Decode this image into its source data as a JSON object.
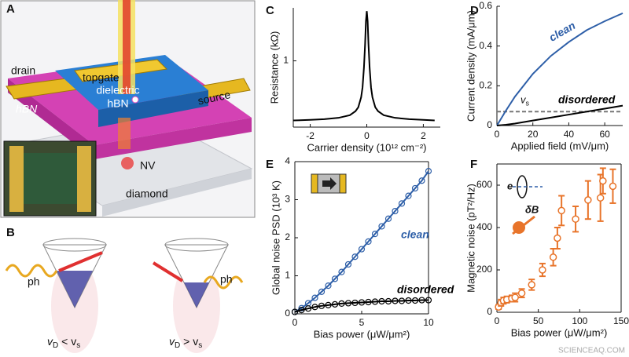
{
  "illustration": {
    "a": {
      "panel": "A",
      "drain": "drain",
      "topgate": "topgate",
      "dielectric": [
        "dielectric",
        "hBN"
      ],
      "source": "source",
      "hbn": "hBN",
      "nv": "NV",
      "diamond": "diamond"
    },
    "b": {
      "panel": "B",
      "ph_left": "ph",
      "ph_right": "ph",
      "left_condition": [
        "v",
        "D",
        " < v",
        "s"
      ],
      "right_condition": [
        "v",
        "D",
        " > v",
        "s"
      ]
    }
  },
  "watermark": "SCIENCEAQ.COM",
  "chart_data": [
    {
      "panel": "C",
      "type": "line",
      "xlabel": "Carrier density (10¹² cm⁻²)",
      "ylabel": "Resistance (kΩ)",
      "x": [
        -2.6,
        -2,
        -1.5,
        -1,
        -0.6,
        -0.4,
        -0.3,
        -0.2,
        -0.15,
        -0.1,
        -0.06,
        -0.03,
        0,
        0.03,
        0.06,
        0.1,
        0.15,
        0.2,
        0.3,
        0.4,
        0.6,
        1,
        1.5,
        2,
        2.4
      ],
      "series": [
        {
          "color": "#000000",
          "values": [
            0.1,
            0.11,
            0.12,
            0.14,
            0.18,
            0.24,
            0.3,
            0.45,
            0.6,
            0.9,
            1.25,
            1.6,
            1.75,
            1.6,
            1.25,
            0.9,
            0.6,
            0.45,
            0.3,
            0.24,
            0.18,
            0.14,
            0.12,
            0.11,
            0.1
          ]
        }
      ],
      "xlim": [
        -2.6,
        2.6
      ],
      "ylim": [
        0,
        1.8
      ],
      "xticks": [
        -2,
        0,
        2
      ],
      "yticks": [
        1
      ],
      "box": false
    },
    {
      "panel": "D",
      "type": "line",
      "xlabel": "Applied field (mV/μm)",
      "ylabel": "Current density (mA/μm)",
      "x": [
        0,
        5,
        10,
        20,
        30,
        40,
        50,
        60,
        70
      ],
      "series": [
        {
          "name": "clean",
          "color": "#2e5fa8",
          "values": [
            0,
            0.075,
            0.145,
            0.26,
            0.35,
            0.42,
            0.48,
            0.525,
            0.565
          ]
        },
        {
          "name": "disordered",
          "color": "#000000",
          "values": [
            0,
            0.004,
            0.01,
            0.025,
            0.04,
            0.055,
            0.07,
            0.085,
            0.1
          ]
        }
      ],
      "reference_line": {
        "value": 0.07,
        "label": [
          "v",
          "s"
        ],
        "color": "#777777"
      },
      "xlim": [
        0,
        70
      ],
      "ylim": [
        0,
        0.6
      ],
      "xticks": [
        0,
        20,
        40,
        60
      ],
      "yticks": [
        0,
        0.2,
        0.4,
        0.6
      ],
      "box": false
    },
    {
      "panel": "E",
      "type": "line",
      "markers": "circle",
      "xlabel": "Bias power (μW/μm²)",
      "ylabel": "Global noise PSD (10³ K)",
      "x": [
        0,
        0.5,
        1,
        1.5,
        2,
        2.5,
        3,
        3.5,
        4,
        4.5,
        5,
        5.5,
        6,
        6.5,
        7,
        7.5,
        8,
        8.5,
        9,
        9.5,
        10
      ],
      "series": [
        {
          "name": "clean",
          "color": "#2e5fa8",
          "values": [
            0.05,
            0.15,
            0.28,
            0.42,
            0.58,
            0.74,
            0.92,
            1.1,
            1.3,
            1.5,
            1.7,
            1.9,
            2.1,
            2.3,
            2.5,
            2.7,
            2.9,
            3.1,
            3.3,
            3.5,
            3.75
          ]
        },
        {
          "name": "disordered",
          "color": "#000000",
          "values": [
            0.05,
            0.1,
            0.14,
            0.18,
            0.21,
            0.23,
            0.25,
            0.27,
            0.28,
            0.29,
            0.3,
            0.31,
            0.32,
            0.33,
            0.33,
            0.34,
            0.34,
            0.35,
            0.35,
            0.36,
            0.36
          ]
        }
      ],
      "xlim": [
        0,
        10
      ],
      "ylim": [
        0,
        4
      ],
      "xticks": [
        0,
        5,
        10
      ],
      "yticks": [
        0,
        1,
        2,
        3,
        4
      ],
      "box": true
    },
    {
      "panel": "F",
      "type": "scatter",
      "xlabel": "Bias power (μW/μm²)",
      "ylabel": "Magnetic noise (pT²/Hz)",
      "annotations": [
        "e",
        "δB"
      ],
      "x": [
        2,
        5,
        8,
        12,
        18,
        22,
        30,
        42,
        55,
        68,
        73,
        78,
        95,
        110,
        125,
        128,
        140
      ],
      "series": [
        {
          "color": "#e8742a",
          "values": [
            25,
            45,
            55,
            60,
            65,
            70,
            90,
            130,
            200,
            260,
            350,
            480,
            440,
            530,
            540,
            620,
            595
          ],
          "errors": [
            10,
            15,
            15,
            15,
            15,
            20,
            20,
            25,
            30,
            40,
            50,
            70,
            60,
            90,
            110,
            60,
            80
          ]
        }
      ],
      "xlim": [
        0,
        150
      ],
      "ylim": [
        0,
        700
      ],
      "xticks": [
        0,
        50,
        100,
        150
      ],
      "yticks": [
        0,
        200,
        400,
        600
      ],
      "box": true
    }
  ]
}
